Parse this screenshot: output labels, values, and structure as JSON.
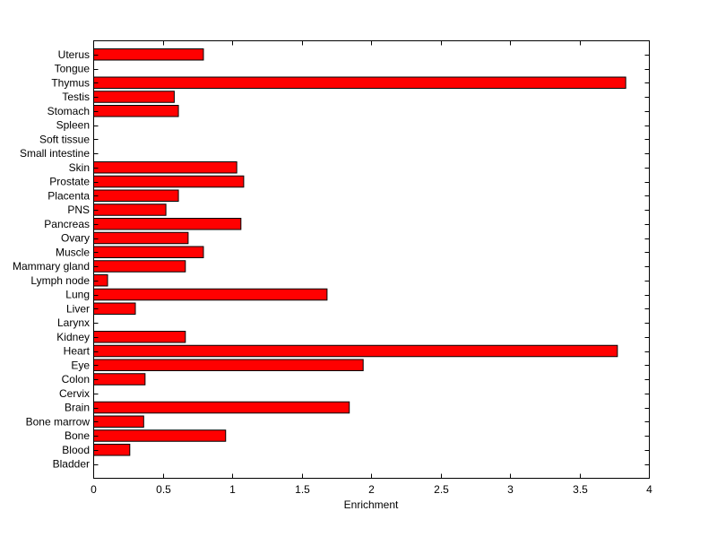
{
  "chart_data": {
    "type": "bar",
    "orientation": "horizontal",
    "title": "",
    "xlabel": "Enrichment",
    "ylabel": "",
    "xlim": [
      0,
      4
    ],
    "x_ticks": [
      0,
      0.5,
      1,
      1.5,
      2,
      2.5,
      3,
      3.5,
      4
    ],
    "x_tick_labels": [
      "0",
      "0.5",
      "1",
      "1.5",
      "2",
      "2.5",
      "3",
      "3.5",
      "4"
    ],
    "bar_color": "#ff0000",
    "grid": false,
    "categories": [
      "Bladder",
      "Blood",
      "Bone",
      "Bone marrow",
      "Brain",
      "Cervix",
      "Colon",
      "Eye",
      "Heart",
      "Kidney",
      "Larynx",
      "Liver",
      "Lung",
      "Lymph node",
      "Mammary gland",
      "Muscle",
      "Ovary",
      "Pancreas",
      "PNS",
      "Placenta",
      "Prostate",
      "Skin",
      "Small intestine",
      "Soft tissue",
      "Spleen",
      "Stomach",
      "Testis",
      "Thymus",
      "Tongue",
      "Uterus"
    ],
    "values": [
      0,
      0.26,
      0.95,
      0.36,
      1.84,
      0,
      0.37,
      1.94,
      3.77,
      0.66,
      0,
      0.3,
      1.68,
      0.1,
      0.66,
      0.79,
      0.68,
      1.06,
      0.52,
      0.61,
      1.08,
      1.03,
      0,
      0,
      0,
      0.61,
      0.58,
      3.83,
      0,
      0.79
    ]
  }
}
